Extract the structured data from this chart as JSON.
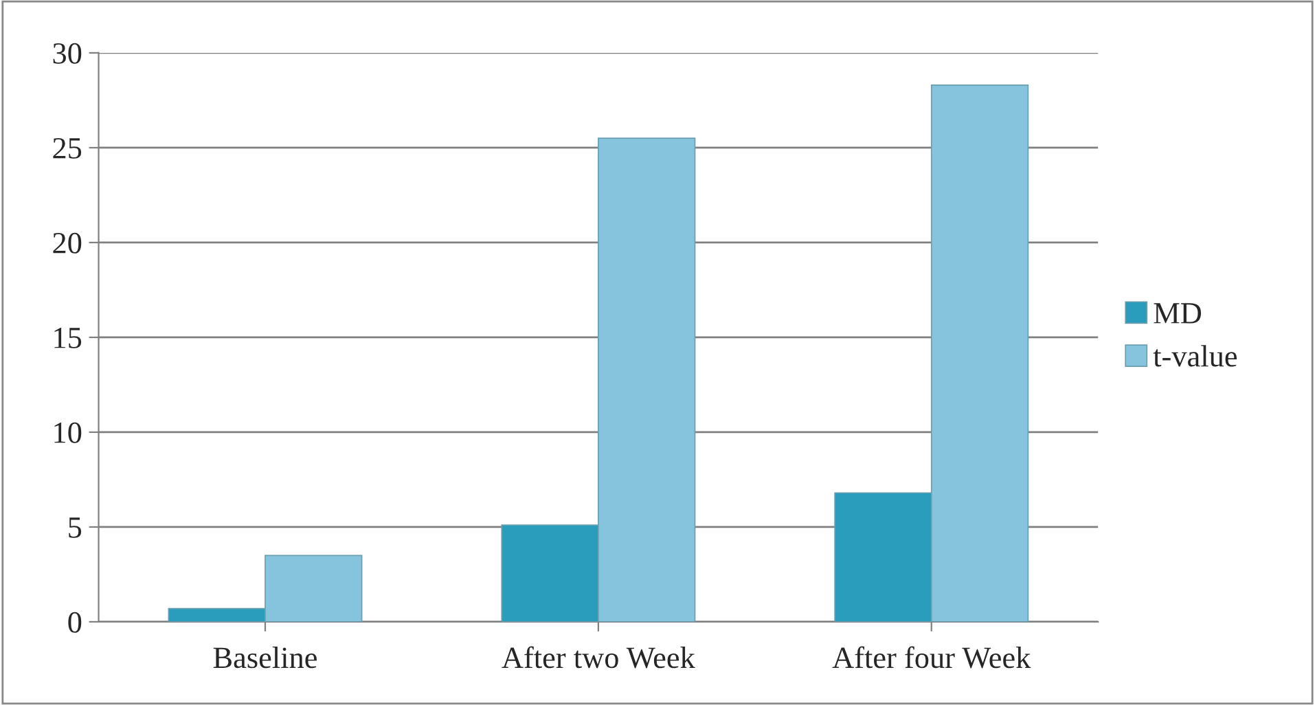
{
  "chart_data": {
    "type": "bar",
    "categories": [
      "Baseline",
      "After two Week",
      "After four Week"
    ],
    "series": [
      {
        "name": "MD",
        "color": "#2a9dbd",
        "values": [
          0.7,
          5.1,
          6.8
        ]
      },
      {
        "name": "t-value",
        "color": "#86c3dc",
        "values": [
          3.5,
          25.5,
          28.3
        ]
      }
    ],
    "ylim": [
      0,
      30
    ],
    "yticks": [
      0,
      5,
      10,
      15,
      20,
      25,
      30
    ],
    "grid": "y",
    "legend": "right"
  }
}
